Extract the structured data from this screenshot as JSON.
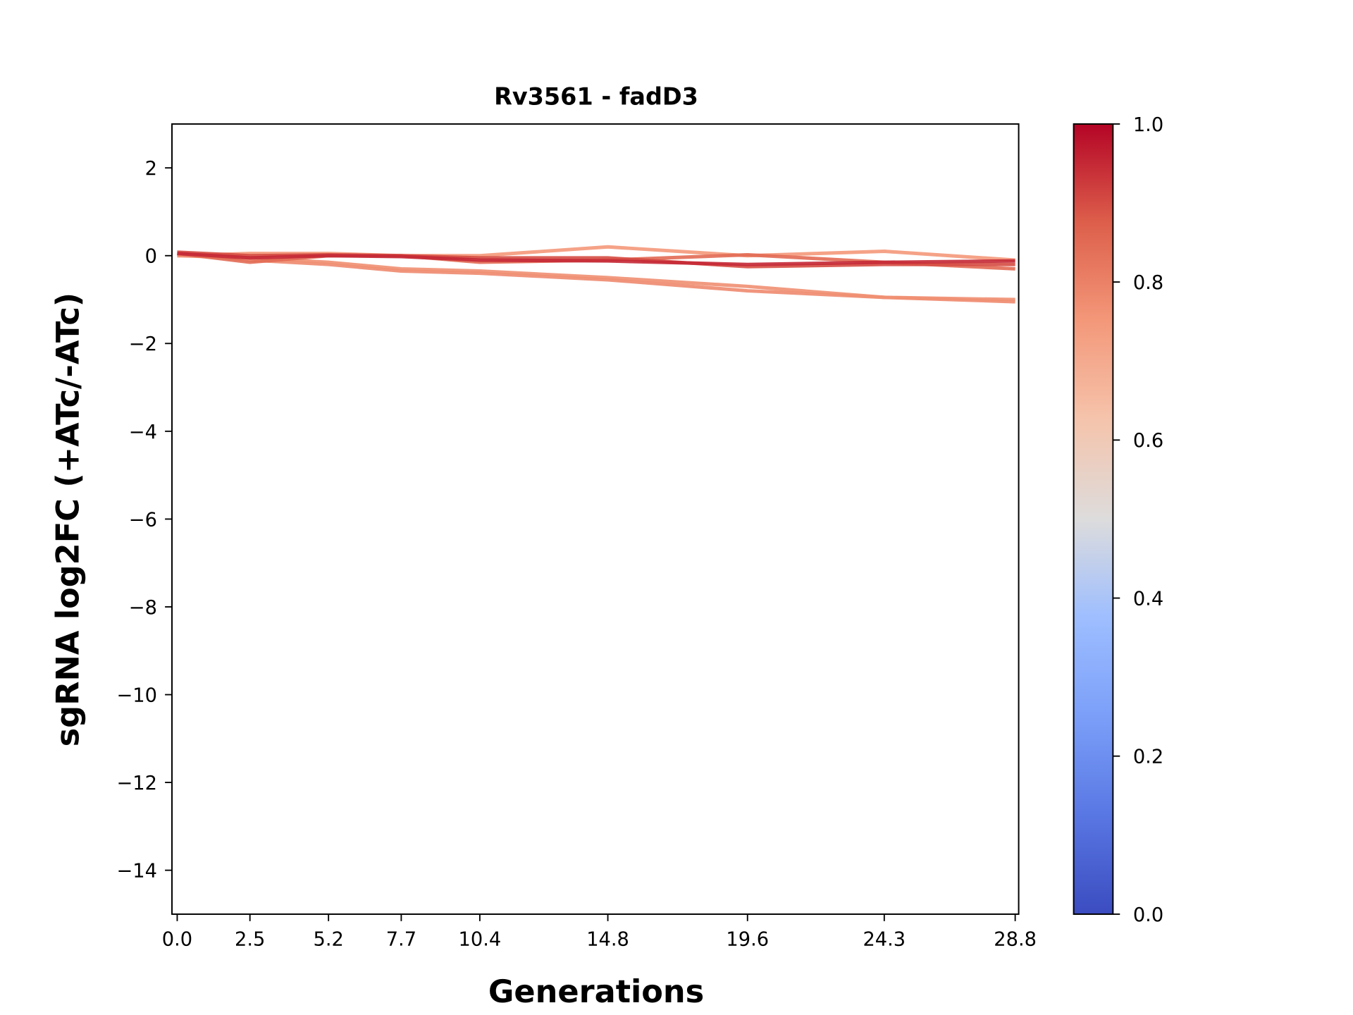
{
  "chart_data": {
    "type": "line",
    "title": "Rv3561 - fadD3",
    "xlabel": "Generations",
    "ylabel": "sgRNA log2FC (+ATc/-ATc)",
    "x": [
      0.0,
      2.5,
      5.2,
      7.7,
      10.4,
      14.8,
      19.6,
      24.3,
      28.8
    ],
    "x_tick_labels": [
      "0.0",
      "2.5",
      "5.2",
      "7.7",
      "10.4",
      "14.8",
      "19.6",
      "24.3",
      "28.8"
    ],
    "ylim": [
      -15,
      3
    ],
    "y_ticks": [
      2,
      0,
      -2,
      -4,
      -6,
      -8,
      -10,
      -12,
      -14
    ],
    "y_tick_labels": [
      "2",
      "0",
      "−2",
      "−4",
      "−6",
      "−8",
      "−10",
      "−12",
      "−14"
    ],
    "grid": false,
    "legend": "none",
    "colormap": "coolwarm",
    "colorbar": {
      "range": [
        0.0,
        1.0
      ],
      "tick_labels": [
        "0.0",
        "0.2",
        "0.4",
        "0.6",
        "0.8",
        "1.0"
      ]
    },
    "series": [
      {
        "color_value": 0.75,
        "values": [
          0.0,
          0.05,
          0.05,
          0.0,
          0.0,
          0.2,
          0.0,
          0.1,
          -0.1
        ]
      },
      {
        "color_value": 0.78,
        "values": [
          0.05,
          -0.1,
          -0.2,
          -0.35,
          -0.4,
          -0.55,
          -0.8,
          -0.95,
          -1.05
        ]
      },
      {
        "color_value": 0.77,
        "values": [
          0.0,
          -0.05,
          -0.15,
          -0.3,
          -0.35,
          -0.5,
          -0.7,
          -0.95,
          -1.0
        ]
      },
      {
        "color_value": 0.85,
        "values": [
          0.05,
          -0.15,
          0.0,
          0.0,
          -0.15,
          -0.1,
          0.02,
          -0.15,
          -0.3
        ]
      },
      {
        "color_value": 0.9,
        "values": [
          0.08,
          0.0,
          0.02,
          0.0,
          -0.05,
          -0.05,
          -0.25,
          -0.2,
          -0.2
        ]
      },
      {
        "color_value": 0.95,
        "values": [
          0.05,
          -0.05,
          0.0,
          -0.02,
          -0.1,
          -0.12,
          -0.2,
          -0.15,
          -0.12
        ]
      }
    ]
  }
}
